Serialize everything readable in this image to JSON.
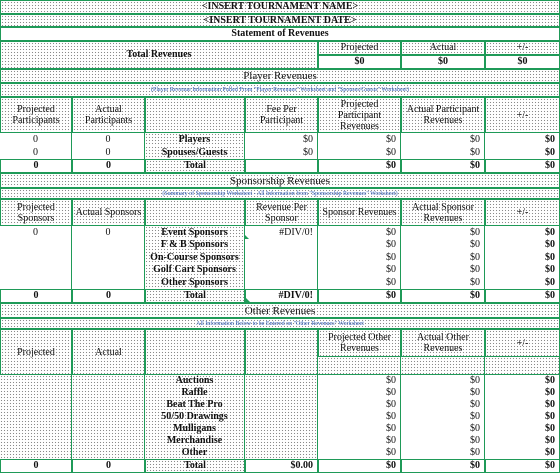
{
  "header": {
    "tournament_name": "<INSERT TOURNAMENT NAME>",
    "tournament_date": "<INSERT TOURNAMENT DATE>",
    "statement_title": "Statement of Revenues"
  },
  "summary": {
    "label": "Total Revenues",
    "col_projected": "Projected",
    "col_actual": "Actual",
    "col_diff": "+/-",
    "projected": "$0",
    "actual": "$0",
    "diff": "$0"
  },
  "player": {
    "title": "Player Revenues",
    "note": "(Player Revenue Information Pulled From \"Player Revenues\" Worksheet and \"Spouses/Guests\" Worksheet)",
    "headers": [
      "Projected Participants",
      "Actual Participants",
      "",
      "Fee Per Participant",
      "Projected Participant Revenues",
      "Actual Participant Revenues",
      "+/-"
    ],
    "rows": [
      [
        "0",
        "0",
        "Players",
        "$0",
        "$0",
        "$0",
        "$0"
      ],
      [
        "0",
        "0",
        "Spouses/Guests",
        "$0",
        "$0",
        "$0",
        "$0"
      ]
    ],
    "total": [
      "0",
      "0",
      "Total",
      "",
      "$0",
      "$0",
      "$0"
    ]
  },
  "sponsorship": {
    "title": "Sponsorship Revenues",
    "note": "(Summary of Sponsorship Worksheet - All Information from \"Sponsorship Revenues\" Worksheet)",
    "headers": [
      "Projected Sponsors",
      "Actual Sponsors",
      "",
      "Revenue Per Sponsor",
      "Sponsor Revenues",
      "Actual Sponsor Revenues",
      "+/-"
    ],
    "rows": [
      [
        "0",
        "0",
        "Event Sponsors",
        "#DIV/0!",
        "$0",
        "$0",
        "$0"
      ],
      [
        "",
        "",
        "F & B Sponsors",
        "",
        "$0",
        "$0",
        "$0"
      ],
      [
        "",
        "",
        "On-Course Sponsors",
        "",
        "$0",
        "$0",
        "$0"
      ],
      [
        "",
        "",
        "Golf Cart Sponsors",
        "",
        "$0",
        "$0",
        "$0"
      ],
      [
        "",
        "",
        "Other Sponsors",
        "",
        "$0",
        "$0",
        "$0"
      ]
    ],
    "total": [
      "0",
      "0",
      "Total",
      "#DIV/0!",
      "$0",
      "$0",
      "$0"
    ]
  },
  "other": {
    "title": "Other Revenues",
    "note": "All Information Below to be Entered on \"Other Revenues\" Worksheet",
    "headers": [
      "Projected",
      "Actual",
      "",
      "",
      "Projected Other Revenues",
      "Actual Other Revenues",
      "+/-"
    ],
    "rows": [
      [
        "",
        "",
        "Auctions",
        "",
        "$0",
        "$0",
        "$0"
      ],
      [
        "",
        "",
        "Raffle",
        "",
        "$0",
        "$0",
        "$0"
      ],
      [
        "",
        "",
        "Beat The Pro",
        "",
        "$0",
        "$0",
        "$0"
      ],
      [
        "",
        "",
        "50/50 Drawings",
        "",
        "$0",
        "$0",
        "$0"
      ],
      [
        "",
        "",
        "Mulligans",
        "",
        "$0",
        "$0",
        "$0"
      ],
      [
        "",
        "",
        "Merchandise",
        "",
        "$0",
        "$0",
        "$0"
      ],
      [
        "",
        "",
        "Other",
        "",
        "$0",
        "$0",
        "$0"
      ]
    ],
    "total": [
      "0",
      "0",
      "Total",
      "$0.00",
      "$0",
      "$0",
      "$0"
    ]
  }
}
